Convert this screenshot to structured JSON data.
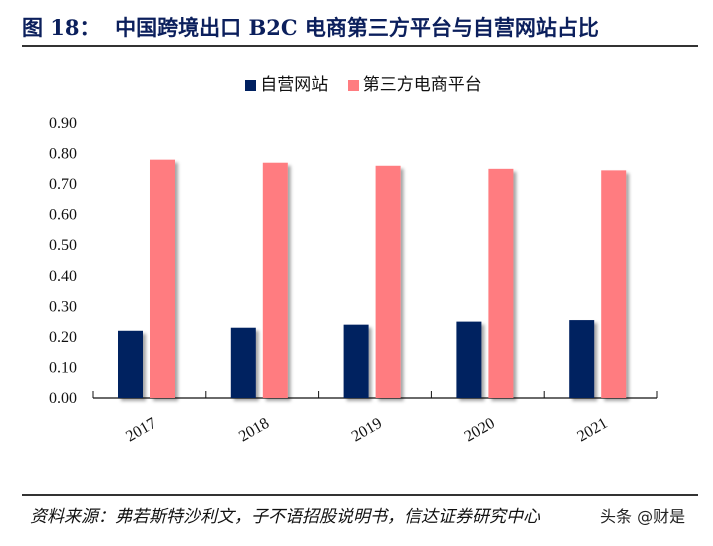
{
  "title": "图 18：  中国跨境出口 B2C 电商第三方平台与自营网站占比",
  "source": "资料来源：弗若斯特沙利文，子不语招股说明书，信达证券研究中心",
  "watermark": "头条 @财是",
  "chart_data": {
    "type": "bar",
    "title": "",
    "xlabel": "",
    "ylabel": "",
    "categories": [
      "2017",
      "2018",
      "2019",
      "2020",
      "2021"
    ],
    "series": [
      {
        "name": "自营网站",
        "color": "#002060",
        "values": [
          0.22,
          0.23,
          0.24,
          0.25,
          0.255
        ]
      },
      {
        "name": "第三方电商平台",
        "color": "#ff7c80",
        "values": [
          0.78,
          0.77,
          0.76,
          0.75,
          0.745
        ]
      }
    ],
    "ylim": [
      0,
      0.9
    ],
    "yticks": [
      "0.00",
      "0.10",
      "0.20",
      "0.30",
      "0.40",
      "0.50",
      "0.60",
      "0.70",
      "0.80",
      "0.90"
    ],
    "grid": false,
    "legend_position": "top"
  }
}
